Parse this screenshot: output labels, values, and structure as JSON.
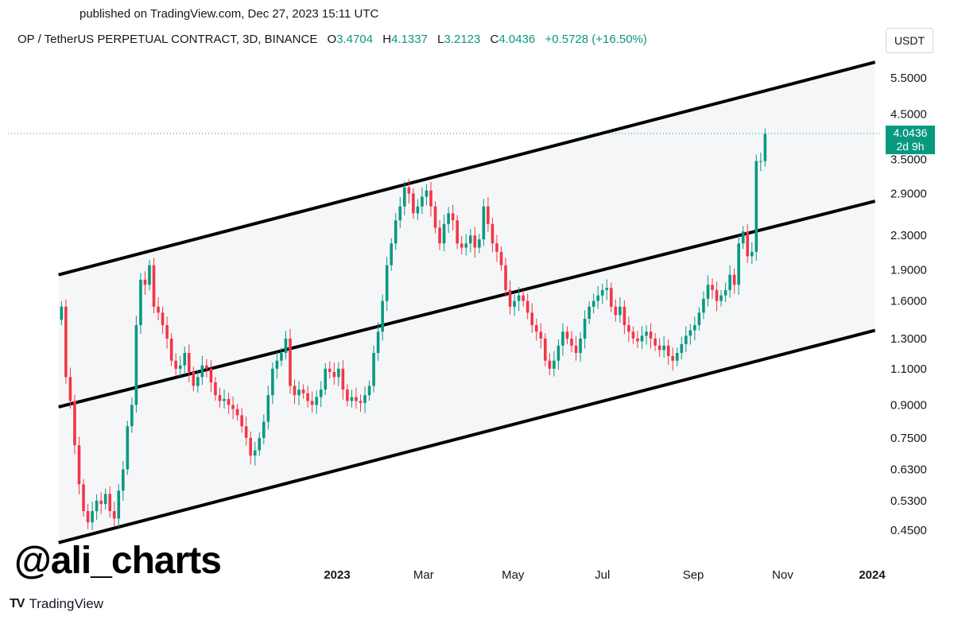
{
  "header": {
    "published": "published on TradingView.com, Dec 27, 2023 15:11 UTC",
    "symbol": "OP / TetherUS PERPETUAL CONTRACT, 3D, BINANCE",
    "o_label": "O",
    "o_value": "3.4704",
    "h_label": "H",
    "h_value": "4.1337",
    "l_label": "L",
    "l_value": "3.2123",
    "c_label": "C",
    "c_value": "4.0436",
    "change": "+0.5728 (+16.50%)"
  },
  "currency_button": "USDT",
  "price_tag": {
    "price": "4.0436",
    "countdown": "2d 9h"
  },
  "watermark": "@ali_charts",
  "footer_brand": {
    "logo": "TV",
    "name": "TradingView"
  },
  "colors": {
    "up": "#089981",
    "down": "#f23645",
    "channel_fill": "#f5f6f8",
    "channel_line": "#000000"
  },
  "chart_data": {
    "type": "candlestick",
    "scale": "log",
    "y_ticks": [
      "5.5000",
      "4.5000",
      "3.5000",
      "2.9000",
      "2.3000",
      "1.9000",
      "1.6000",
      "1.3000",
      "1.1000",
      "0.9000",
      "0.7500",
      "0.6300",
      "0.5300",
      "0.4500"
    ],
    "x_ticks": [
      "2023",
      "Mar",
      "May",
      "Jul",
      "Sep",
      "Nov",
      "2024"
    ],
    "x_tick_dates": [
      "2023-01-01",
      "2023-03-01",
      "2023-05-01",
      "2023-07-01",
      "2023-09-01",
      "2023-11-01",
      "2024-01-01"
    ],
    "last_price": 4.0436,
    "channel": {
      "upper": [
        [
          "2022-06-25",
          1.85
        ],
        [
          "2024-01-03",
          6.0
        ]
      ],
      "middle": [
        [
          "2022-06-25",
          0.89
        ],
        [
          "2024-01-03",
          2.78
        ]
      ],
      "lower": [
        [
          "2022-06-25",
          0.42
        ],
        [
          "2024-01-03",
          1.36
        ]
      ]
    },
    "series": [
      {
        "interval": "3D",
        "start": "2022-06-27",
        "closes": [
          1.55,
          1.05,
          0.92,
          0.72,
          0.58,
          0.5,
          0.47,
          0.5,
          0.53,
          0.52,
          0.55,
          0.5,
          0.48,
          0.56,
          0.63,
          0.8,
          0.9,
          1.4,
          1.8,
          1.75,
          1.95,
          1.55,
          1.5,
          1.4,
          1.3,
          1.15,
          1.1,
          1.12,
          1.2,
          1.08,
          1.0,
          1.05,
          1.12,
          1.1,
          1.02,
          0.95,
          0.92,
          0.93,
          0.9,
          0.88,
          0.85,
          0.8,
          0.75,
          0.68,
          0.7,
          0.75,
          0.82,
          0.95,
          1.1,
          1.15,
          1.2,
          1.3,
          1.0,
          0.95,
          0.98,
          0.96,
          0.92,
          0.9,
          0.94,
          0.98,
          1.1,
          1.08,
          1.05,
          1.1,
          0.98,
          0.92,
          0.94,
          0.92,
          0.91,
          0.95,
          1.0,
          1.2,
          1.35,
          1.6,
          1.95,
          2.2,
          2.5,
          2.7,
          3.0,
          2.9,
          2.6,
          2.7,
          2.85,
          2.95,
          2.7,
          2.4,
          2.2,
          2.45,
          2.6,
          2.5,
          2.2,
          2.15,
          2.2,
          2.3,
          2.15,
          2.25,
          2.7,
          2.45,
          2.2,
          2.1,
          1.95,
          1.7,
          1.55,
          1.6,
          1.65,
          1.6,
          1.5,
          1.4,
          1.35,
          1.3,
          1.15,
          1.1,
          1.15,
          1.25,
          1.35,
          1.3,
          1.25,
          1.2,
          1.3,
          1.45,
          1.55,
          1.6,
          1.65,
          1.7,
          1.72,
          1.55,
          1.48,
          1.55,
          1.4,
          1.35,
          1.3,
          1.28,
          1.32,
          1.35,
          1.3,
          1.25,
          1.22,
          1.25,
          1.18,
          1.15,
          1.2,
          1.26,
          1.32,
          1.36,
          1.4,
          1.5,
          1.62,
          1.75,
          1.7,
          1.6,
          1.65,
          1.7,
          1.85,
          1.75,
          2.2,
          2.35,
          2.05,
          2.1,
          3.47,
          3.47,
          4.04
        ]
      }
    ]
  }
}
